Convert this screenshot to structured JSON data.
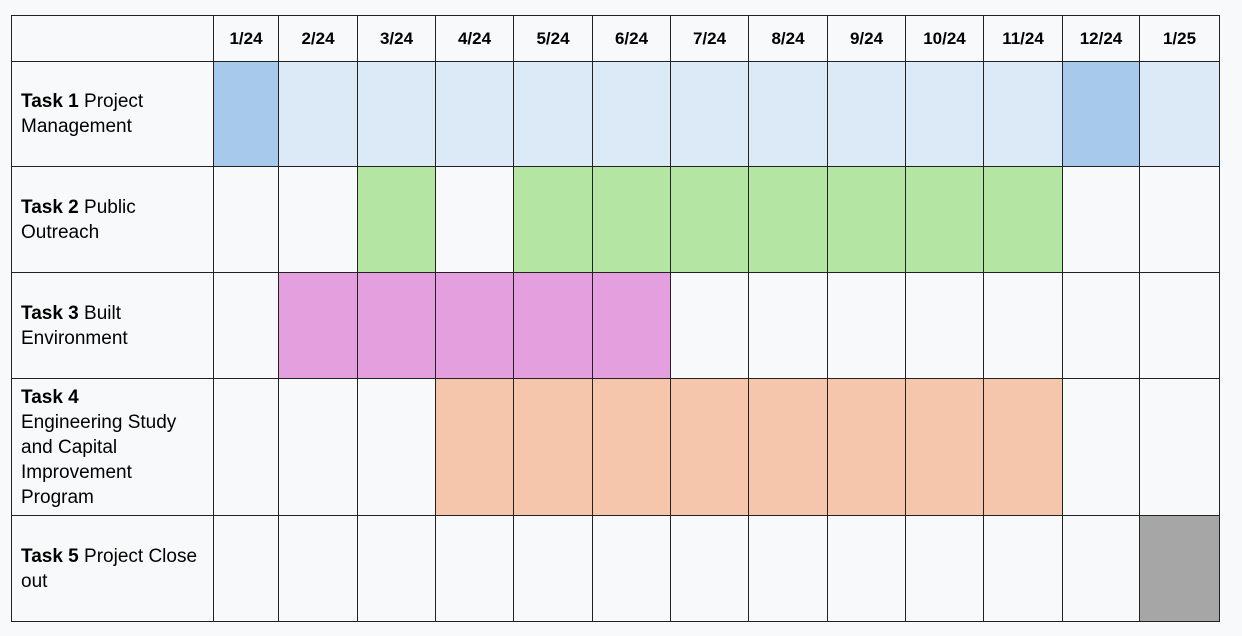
{
  "chart_data": {
    "type": "table",
    "title": "",
    "kind": "gantt",
    "columns": [
      "1/24",
      "2/24",
      "3/24",
      "4/24",
      "5/24",
      "6/24",
      "7/24",
      "8/24",
      "9/24",
      "10/24",
      "11/24",
      "12/24",
      "1/25"
    ],
    "colors": {
      "task1_light": "#dce9f7",
      "task1_dark": "#a6c9ec",
      "task2": "#b5e5a3",
      "task3": "#e4a0de",
      "task4": "#f5c6ab",
      "task5": "#a6a6a6",
      "empty": "#f8f9fa"
    },
    "tasks": [
      {
        "name_bold": "Task 1",
        "name_rest": " Project Management",
        "cells": [
          "task1_dark",
          "task1_light",
          "task1_light",
          "task1_light",
          "task1_light",
          "task1_light",
          "task1_light",
          "task1_light",
          "task1_light",
          "task1_light",
          "task1_light",
          "task1_dark",
          "task1_light"
        ]
      },
      {
        "name_bold": "Task 2",
        "name_rest": " Public Outreach",
        "cells": [
          "empty",
          "empty",
          "task2",
          "empty",
          "task2",
          "task2",
          "task2",
          "task2",
          "task2",
          "task2",
          "task2",
          "empty",
          "empty"
        ]
      },
      {
        "name_bold": "Task 3",
        "name_rest": " Built Environment",
        "cells": [
          "empty",
          "task3",
          "task3",
          "task3",
          "task3",
          "task3",
          "empty",
          "empty",
          "empty",
          "empty",
          "empty",
          "empty",
          "empty"
        ]
      },
      {
        "name_bold": "Task 4",
        "name_rest": " Engineering Study and Capital Improvement Program",
        "cells": [
          "empty",
          "empty",
          "empty",
          "task4",
          "task4",
          "task4",
          "task4",
          "task4",
          "task4",
          "task4",
          "task4",
          "empty",
          "empty"
        ]
      },
      {
        "name_bold": "Task 5",
        "name_rest": " Project Close out",
        "cells": [
          "empty",
          "empty",
          "empty",
          "empty",
          "empty",
          "empty",
          "empty",
          "empty",
          "empty",
          "empty",
          "empty",
          "empty",
          "task5"
        ]
      }
    ]
  }
}
